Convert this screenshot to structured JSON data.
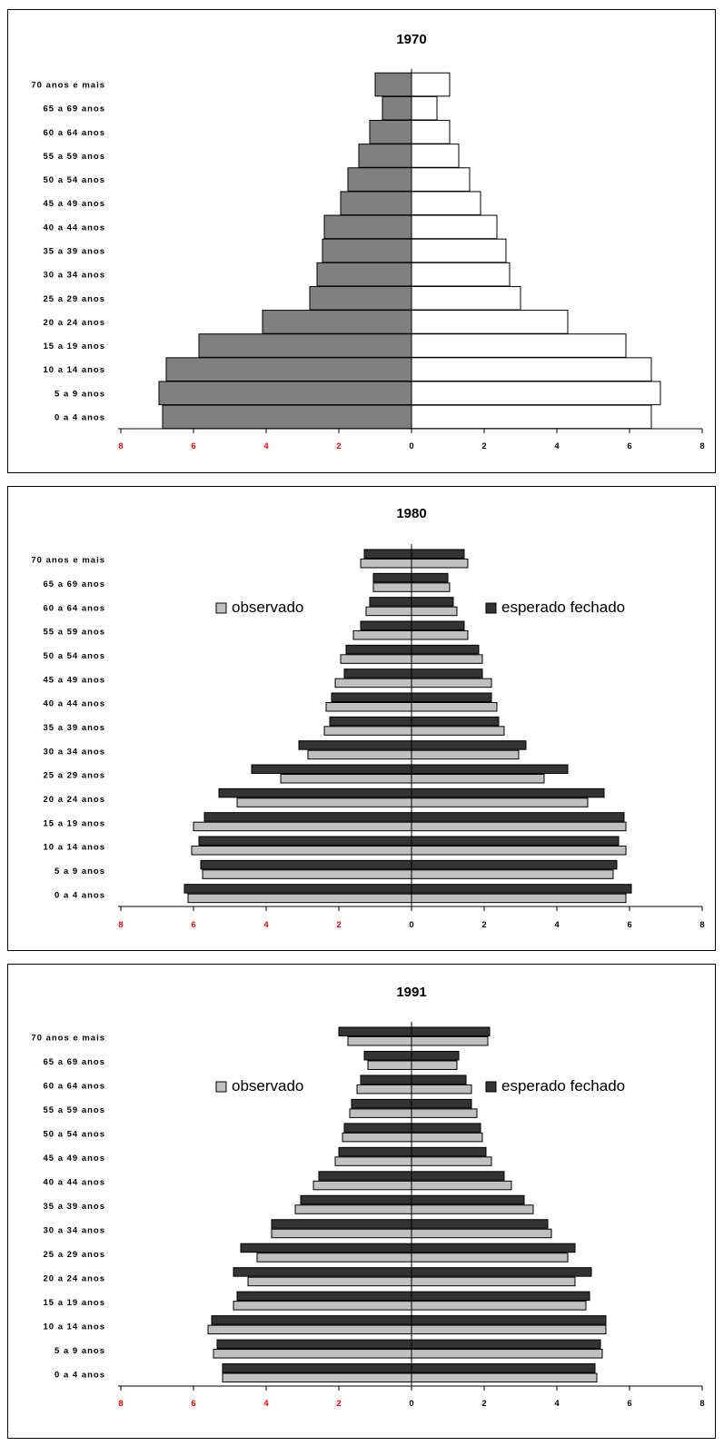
{
  "colors": {
    "female_1970": "#808080",
    "male_1970": "#ffffff",
    "observado": "#c0c0c0",
    "esperado": "#333333",
    "negative_tick": "#ff0000",
    "positive_tick": "#000000"
  },
  "chart_data": [
    {
      "type": "bar",
      "orientation": "horizontal",
      "title": "1970",
      "categories": [
        "0 a 4 anos",
        "5 a 9 anos",
        "10 a 14 anos",
        "15 a 19 anos",
        "20 a 24 anos",
        "25 a 29 anos",
        "30 a 34 anos",
        "35 a 39 anos",
        "40 a 44 anos",
        "45 a 49 anos",
        "50 a 54 anos",
        "55 a 59 anos",
        "60 a 64 anos",
        "65 a 69 anos",
        "70 anos e mais"
      ],
      "xlim": [
        -8,
        8
      ],
      "x_ticks": [
        "8",
        "6",
        "4",
        "2",
        "0",
        "2",
        "4",
        "6",
        "8"
      ],
      "legend": [],
      "series": [
        {
          "values": [
            -6.85,
            -6.95,
            -6.75,
            -5.85,
            -4.1,
            -2.8,
            -2.6,
            -2.45,
            -2.4,
            -1.95,
            -1.75,
            -1.45,
            -1.15,
            -0.8,
            -1.0
          ]
        },
        {
          "values": [
            6.6,
            6.85,
            6.6,
            5.9,
            4.3,
            3.0,
            2.7,
            2.6,
            2.35,
            1.9,
            1.6,
            1.3,
            1.05,
            0.7,
            1.05
          ]
        }
      ]
    },
    {
      "type": "bar",
      "orientation": "horizontal",
      "title": "1980",
      "categories": [
        "0 a 4 anos",
        "5 a 9 anos",
        "10 a 14 anos",
        "15 a 19 anos",
        "20 a 24 anos",
        "25 a 29 anos",
        "30 a 34 anos",
        "35 a 39 anos",
        "40 a 44 anos",
        "45 a 49 anos",
        "50 a 54 anos",
        "55 a 59 anos",
        "60 a 64 anos",
        "65 a 69 anos",
        "70 anos e mais"
      ],
      "xlim": [
        -8,
        8
      ],
      "x_ticks": [
        "8",
        "6",
        "4",
        "2",
        "0",
        "2",
        "4",
        "6",
        "8"
      ],
      "legend": [
        "observado",
        "esperado fechado"
      ],
      "series": [
        {
          "name": "esperado fechado",
          "values_left": [
            -6.25,
            -5.8,
            -5.85,
            -5.7,
            -5.3,
            -4.4,
            -3.1,
            -2.25,
            -2.2,
            -1.85,
            -1.8,
            -1.4,
            -1.15,
            -1.05,
            -1.3
          ],
          "values_right": [
            6.05,
            5.65,
            5.7,
            5.85,
            5.3,
            4.3,
            3.15,
            2.4,
            2.2,
            1.95,
            1.85,
            1.45,
            1.15,
            1.0,
            1.45
          ]
        },
        {
          "name": "observado",
          "values_left": [
            -6.15,
            -5.75,
            -6.05,
            -6.0,
            -4.8,
            -3.6,
            -2.85,
            -2.4,
            -2.35,
            -2.1,
            -1.95,
            -1.6,
            -1.25,
            -1.05,
            -1.4
          ],
          "values_right": [
            5.9,
            5.55,
            5.9,
            5.9,
            4.85,
            3.65,
            2.95,
            2.55,
            2.35,
            2.2,
            1.95,
            1.55,
            1.25,
            1.05,
            1.55
          ]
        }
      ]
    },
    {
      "type": "bar",
      "orientation": "horizontal",
      "title": "1991",
      "categories": [
        "0 a 4 anos",
        "5 a 9 anos",
        "10 a 14 anos",
        "15 a 19 anos",
        "20 a 24 anos",
        "25 a 29 anos",
        "30 a 34 anos",
        "35 a 39 anos",
        "40 a 44 anos",
        "45 a 49 anos",
        "50 a 54 anos",
        "55 a 59 anos",
        "60 a 64 anos",
        "65 a 69 anos",
        "70 anos e mais"
      ],
      "xlim": [
        -8,
        8
      ],
      "x_ticks": [
        "8",
        "6",
        "4",
        "2",
        "0",
        "2",
        "4",
        "6",
        "8"
      ],
      "legend": [
        "observado",
        "esperado fechado"
      ],
      "series": [
        {
          "name": "esperado fechado",
          "values_left": [
            -5.2,
            -5.35,
            -5.5,
            -4.8,
            -4.9,
            -4.7,
            -3.85,
            -3.05,
            -2.55,
            -2.0,
            -1.85,
            -1.65,
            -1.4,
            -1.3,
            -2.0
          ],
          "values_right": [
            5.05,
            5.2,
            5.35,
            4.9,
            4.95,
            4.5,
            3.75,
            3.1,
            2.55,
            2.05,
            1.9,
            1.65,
            1.5,
            1.3,
            2.15
          ]
        },
        {
          "name": "observado",
          "values_left": [
            -5.2,
            -5.45,
            -5.6,
            -4.9,
            -4.5,
            -4.25,
            -3.85,
            -3.2,
            -2.7,
            -2.1,
            -1.9,
            -1.7,
            -1.5,
            -1.2,
            -1.75
          ],
          "values_right": [
            5.1,
            5.25,
            5.35,
            4.8,
            4.5,
            4.3,
            3.85,
            3.35,
            2.75,
            2.2,
            1.95,
            1.8,
            1.65,
            1.25,
            2.1
          ]
        }
      ]
    }
  ]
}
